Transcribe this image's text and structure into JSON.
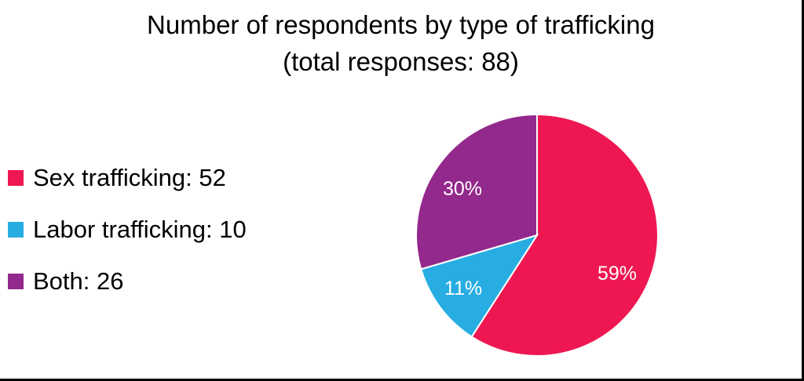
{
  "chart_data": {
    "type": "pie",
    "title": "Number of respondents by type of trafficking",
    "subtitle": "(total responses: 88)",
    "total": 88,
    "categories": [
      "Sex trafficking",
      "Labor trafficking",
      "Both"
    ],
    "values": [
      52,
      10,
      26
    ],
    "percent_labels": [
      "59%",
      "11%",
      "30%"
    ],
    "colors": [
      "#ee1751",
      "#27ade2",
      "#93298c"
    ],
    "legend_position": "left",
    "start_angle": "12 o'clock, clockwise"
  },
  "title": {
    "line1": "Number of respondents by type of trafficking",
    "line2": "(total responses: 88)"
  },
  "legend": {
    "items": [
      {
        "label": "Sex trafficking: 52",
        "color": "#ee1751"
      },
      {
        "label": "Labor trafficking: 10",
        "color": "#27ade2"
      },
      {
        "label": "Both: 26",
        "color": "#93298c"
      }
    ]
  },
  "pie": {
    "labels": [
      "59%",
      "11%",
      "30%"
    ]
  }
}
